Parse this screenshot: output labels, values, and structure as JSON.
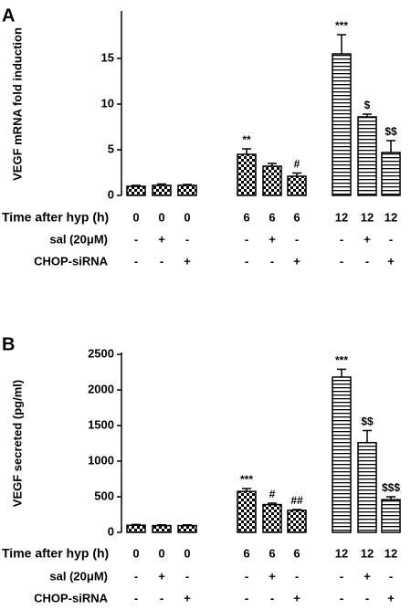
{
  "chart_data": [
    {
      "type": "bar",
      "panel": "A",
      "y_label": "VEGF mRNA fold induction",
      "values": [
        1.0,
        1.1,
        1.1,
        4.5,
        3.2,
        2.1,
        15.5,
        8.6,
        4.7
      ],
      "errors": [
        0.1,
        0.15,
        0.1,
        0.6,
        0.3,
        0.35,
        2.1,
        0.3,
        1.3
      ],
      "patterns": [
        "check",
        "check",
        "check",
        "check",
        "check",
        "check",
        "hline",
        "hline",
        "hline"
      ],
      "color": "#000000",
      "ylim": [
        0,
        20
      ],
      "yticks": [
        0,
        5,
        10,
        15
      ],
      "annotations": [
        {
          "index": 3,
          "text": "**"
        },
        {
          "index": 5,
          "text": "#"
        },
        {
          "index": 6,
          "text": "***"
        },
        {
          "index": 7,
          "text": "$"
        },
        {
          "index": 8,
          "text": "$$"
        }
      ],
      "rows": [
        {
          "label": "Time after hyp (h)",
          "values": [
            "0",
            "0",
            "0",
            "6",
            "6",
            "6",
            "12",
            "12",
            "12"
          ]
        },
        {
          "label": "sal (20μM)",
          "values": [
            "-",
            "+",
            "-",
            "-",
            "+",
            "-",
            "-",
            "+",
            "-"
          ]
        },
        {
          "label": "CHOP-siRNA",
          "values": [
            "-",
            "-",
            "+",
            "-",
            "-",
            "+",
            "-",
            "-",
            "+"
          ]
        }
      ]
    },
    {
      "type": "bar",
      "panel": "B",
      "y_label": "VEGF secreted (pg/ml)",
      "values": [
        100,
        95,
        95,
        575,
        390,
        310,
        2180,
        1260,
        460
      ],
      "errors": [
        10,
        10,
        10,
        40,
        20,
        10,
        110,
        170,
        40
      ],
      "patterns": [
        "check",
        "check",
        "check",
        "check",
        "check",
        "check",
        "hline",
        "hline",
        "hline"
      ],
      "color": "#000000",
      "ylim": [
        0,
        2500
      ],
      "yticks": [
        0,
        500,
        1000,
        1500,
        2000,
        2500
      ],
      "annotations": [
        {
          "index": 3,
          "text": "***"
        },
        {
          "index": 4,
          "text": "#"
        },
        {
          "index": 5,
          "text": "##"
        },
        {
          "index": 6,
          "text": "***"
        },
        {
          "index": 7,
          "text": "$$"
        },
        {
          "index": 8,
          "text": "$$$"
        }
      ],
      "rows": [
        {
          "label": "Time after hyp (h)",
          "values": [
            "0",
            "0",
            "0",
            "6",
            "6",
            "6",
            "12",
            "12",
            "12"
          ]
        },
        {
          "label": "sal (20μM)",
          "values": [
            "-",
            "+",
            "-",
            "-",
            "+",
            "-",
            "-",
            "+",
            "-"
          ]
        },
        {
          "label": "CHOP-siRNA",
          "values": [
            "-",
            "-",
            "+",
            "-",
            "-",
            "+",
            "-",
            "-",
            "+"
          ]
        }
      ]
    }
  ]
}
